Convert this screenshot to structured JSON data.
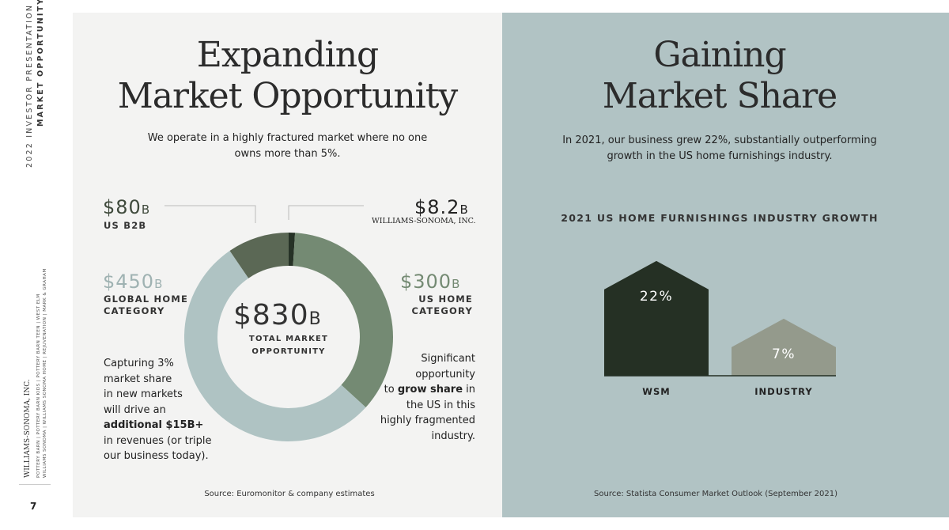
{
  "sidebar": {
    "deck": "2022 INVESTOR PRESENTATION",
    "section": "MARKET OPPORTUNITY",
    "company": "WILLIAMS-SONOMA, INC.",
    "brands_line1": "POTTERY BARN | POTTERY BARN KIDS | POTTERY BARN TEEN | WEST ELM",
    "brands_line2": "WILLIAMS SONOMA | WILLIAMS SONOMA HOME | REJUVENATION | MARK & GRAHAM",
    "page": "7"
  },
  "left": {
    "title1": "Expanding",
    "title2": "Market Opportunity",
    "subtitle1": "We operate in a highly fractured market where no one",
    "subtitle2": "owns more than 5%.",
    "b2b_value": "$80",
    "b2b_unit": "B",
    "b2b_label": "US B2B",
    "wsm_value": "$8.2",
    "wsm_unit": "B",
    "wsm_label": "WILLIAMS-SONOMA, INC.",
    "global_value": "$450",
    "global_unit": "B",
    "global_label1": "GLOBAL HOME",
    "global_label2": "CATEGORY",
    "us_value": "$300",
    "us_unit": "B",
    "us_label1": "US HOME",
    "us_label2": "CATEGORY",
    "total_value": "$830",
    "total_unit": "B",
    "total_label1": "TOTAL MARKET",
    "total_label2": "OPPORTUNITY",
    "note_left": [
      "Capturing 3%",
      "market share",
      "in new markets",
      "will drive an"
    ],
    "note_left_bold": "additional $15B+",
    "note_left_end": [
      "in revenues (or triple",
      "our business today)."
    ],
    "note_right1": "Significant",
    "note_right2": "opportunity",
    "note_right3_pre": "to ",
    "note_right3_bold": "grow share",
    "note_right3_post": " in",
    "note_right4": "the US in this",
    "note_right5": "highly fragmented",
    "note_right6": "industry.",
    "source": "Source: Euromonitor & company estimates"
  },
  "right": {
    "title1": "Gaining",
    "title2": "Market Share",
    "subtitle1": "In 2021, our business grew 22%, substantially outperforming",
    "subtitle2": "growth in the US home furnishings industry.",
    "source": "Source:  Statista Consumer Market Outlook (September 2021)"
  },
  "chart_data": [
    {
      "type": "pie",
      "variant": "donut",
      "segments": [
        {
          "name": "WILLIAMS-SONOMA, INC.",
          "value": 8.2,
          "color": "#263226"
        },
        {
          "name": "US HOME CATEGORY",
          "value": 300,
          "color": "#748a73"
        },
        {
          "name": "GLOBAL HOME CATEGORY",
          "value": 450,
          "color": "#afc3c3"
        },
        {
          "name": "US B2B",
          "value": 80,
          "color": "#5b6855"
        }
      ],
      "center_label": "$830B TOTAL MARKET OPPORTUNITY"
    },
    {
      "type": "bar",
      "title": "2021 US HOME FURNISHINGS INDUSTRY GROWTH",
      "categories": [
        "WSM",
        "INDUSTRY"
      ],
      "values": [
        22,
        7
      ],
      "value_labels": [
        "22%",
        "7%"
      ],
      "colors": [
        "#253024",
        "#949a8c"
      ]
    }
  ]
}
